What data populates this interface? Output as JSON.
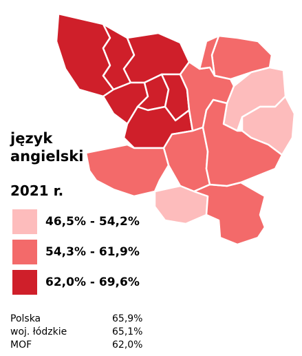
{
  "legend": {
    "title_line1": "język",
    "title_line2": "angielski",
    "year": "2021 r.",
    "classes": [
      {
        "label": "46,5% - 54,2%",
        "color": "#fdbcbc"
      },
      {
        "label": "54,3% - 61,9%",
        "color": "#f36a6a"
      },
      {
        "label": "62,0% - 69,6%",
        "color": "#cf1f2a"
      }
    ]
  },
  "stats": [
    {
      "name": "Polska",
      "value": "65,9%"
    },
    {
      "name": "woj. łódzkie",
      "value": "65,1%"
    },
    {
      "name": "MOF",
      "value": "62,0%"
    }
  ],
  "map": {
    "border_color": "#ffffff",
    "regions": [
      {
        "name": "region-nw-outer",
        "class": 2
      },
      {
        "name": "region-nw-center",
        "class": 2
      },
      {
        "name": "region-north",
        "class": 2
      },
      {
        "name": "region-center-west",
        "class": 2
      },
      {
        "name": "region-center-mid",
        "class": 2
      },
      {
        "name": "region-center-east",
        "class": 2
      },
      {
        "name": "region-south-of-core",
        "class": 2
      },
      {
        "name": "region-northeast",
        "class": 1
      },
      {
        "name": "region-east-upper",
        "class": 0
      },
      {
        "name": "region-east-lower",
        "class": 0
      },
      {
        "name": "region-mid-east",
        "class": 1
      },
      {
        "name": "region-center",
        "class": 1
      },
      {
        "name": "region-west",
        "class": 1
      },
      {
        "name": "region-south",
        "class": 0
      },
      {
        "name": "region-southeast",
        "class": 1
      },
      {
        "name": "region-south-center",
        "class": 1
      },
      {
        "name": "region-east-central",
        "class": 1
      }
    ]
  }
}
